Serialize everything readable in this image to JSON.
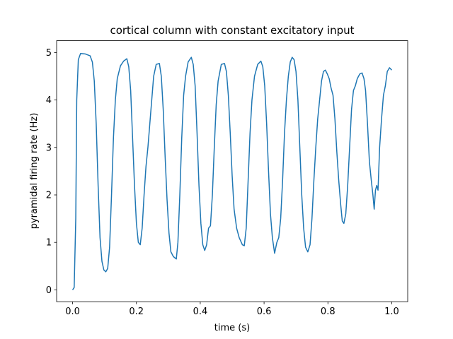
{
  "chart_data": {
    "type": "line",
    "title": "cortical column with constant excitatory input",
    "xlabel": "time (s)",
    "ylabel": "pyramidal firing rate (Hz)",
    "x": [
      0,
      0.005,
      0.01,
      0.013,
      0.018,
      0.025,
      0.04,
      0.055,
      0.062,
      0.068,
      0.074,
      0.08,
      0.086,
      0.092,
      0.098,
      0.104,
      0.11,
      0.116,
      0.122,
      0.128,
      0.134,
      0.14,
      0.15,
      0.16,
      0.17,
      0.176,
      0.182,
      0.188,
      0.194,
      0.2,
      0.206,
      0.212,
      0.218,
      0.224,
      0.23,
      0.236,
      0.242,
      0.248,
      0.254,
      0.262,
      0.272,
      0.278,
      0.284,
      0.29,
      0.296,
      0.302,
      0.308,
      0.316,
      0.325,
      0.33,
      0.336,
      0.342,
      0.348,
      0.354,
      0.362,
      0.372,
      0.378,
      0.384,
      0.39,
      0.396,
      0.402,
      0.408,
      0.414,
      0.42,
      0.426,
      0.432,
      0.438,
      0.444,
      0.45,
      0.456,
      0.466,
      0.476,
      0.482,
      0.488,
      0.494,
      0.5,
      0.506,
      0.514,
      0.522,
      0.532,
      0.538,
      0.544,
      0.55,
      0.556,
      0.562,
      0.57,
      0.58,
      0.59,
      0.596,
      0.602,
      0.608,
      0.614,
      0.62,
      0.626,
      0.633,
      0.64,
      0.646,
      0.652,
      0.658,
      0.664,
      0.67,
      0.676,
      0.682,
      0.688,
      0.694,
      0.7,
      0.706,
      0.712,
      0.718,
      0.724,
      0.73,
      0.737,
      0.744,
      0.75,
      0.756,
      0.762,
      0.768,
      0.774,
      0.78,
      0.786,
      0.792,
      0.798,
      0.804,
      0.81,
      0.816,
      0.822,
      0.828,
      0.834,
      0.84,
      0.845,
      0.85,
      0.856,
      0.862,
      0.868,
      0.874,
      0.88,
      0.886,
      0.892,
      0.9,
      0.907,
      0.913,
      0.918,
      0.924,
      0.93,
      0.936,
      0.941,
      0.945,
      0.949,
      0.953,
      0.957,
      0.962,
      0.968,
      0.974,
      0.98,
      0.986,
      0.993,
      1.0
    ],
    "series": [
      {
        "name": "pyramidal",
        "color": "#1f77b4",
        "values": [
          0,
          0.05,
          1.5,
          4.0,
          4.85,
          4.98,
          4.97,
          4.93,
          4.8,
          4.4,
          3.5,
          2.2,
          1.1,
          0.6,
          0.42,
          0.38,
          0.45,
          0.9,
          2.0,
          3.2,
          4.0,
          4.45,
          4.72,
          4.82,
          4.87,
          4.7,
          4.2,
          3.2,
          2.2,
          1.4,
          1.0,
          0.95,
          1.3,
          2.0,
          2.6,
          3.0,
          3.5,
          4.0,
          4.5,
          4.75,
          4.77,
          4.5,
          3.8,
          2.8,
          1.9,
          1.2,
          0.8,
          0.7,
          0.65,
          1.0,
          2.0,
          3.2,
          4.1,
          4.5,
          4.8,
          4.9,
          4.75,
          4.3,
          3.3,
          2.2,
          1.4,
          0.95,
          0.83,
          0.95,
          1.3,
          1.35,
          2.0,
          3.0,
          3.9,
          4.4,
          4.75,
          4.77,
          4.6,
          4.1,
          3.3,
          2.4,
          1.7,
          1.3,
          1.1,
          0.95,
          0.93,
          1.3,
          2.3,
          3.3,
          4.0,
          4.5,
          4.75,
          4.82,
          4.7,
          4.3,
          3.5,
          2.5,
          1.6,
          1.1,
          0.77,
          1.0,
          1.1,
          1.5,
          2.3,
          3.3,
          4.0,
          4.5,
          4.8,
          4.9,
          4.85,
          4.6,
          4.0,
          3.0,
          2.0,
          1.3,
          0.9,
          0.8,
          0.95,
          1.5,
          2.3,
          3.0,
          3.6,
          4.0,
          4.4,
          4.6,
          4.63,
          4.55,
          4.45,
          4.25,
          4.1,
          3.6,
          2.9,
          2.3,
          1.8,
          1.45,
          1.4,
          1.6,
          2.2,
          3.0,
          3.8,
          4.2,
          4.3,
          4.45,
          4.55,
          4.57,
          4.45,
          4.2,
          3.5,
          2.7,
          2.3,
          2.0,
          1.7,
          2.1,
          2.2,
          2.1,
          3.0,
          3.6,
          4.1,
          4.3,
          4.6,
          4.68,
          4.63
        ]
      }
    ],
    "xlim": [
      -0.05,
      1.05
    ],
    "ylim": [
      -0.25,
      5.25
    ],
    "xticks": [
      {
        "value": 0,
        "label": "0.0"
      },
      0.2,
      0.4,
      0.6,
      0.8,
      {
        "value": 1,
        "label": "1.0"
      }
    ],
    "yticks": [
      0,
      1,
      2,
      3,
      4,
      5
    ]
  }
}
